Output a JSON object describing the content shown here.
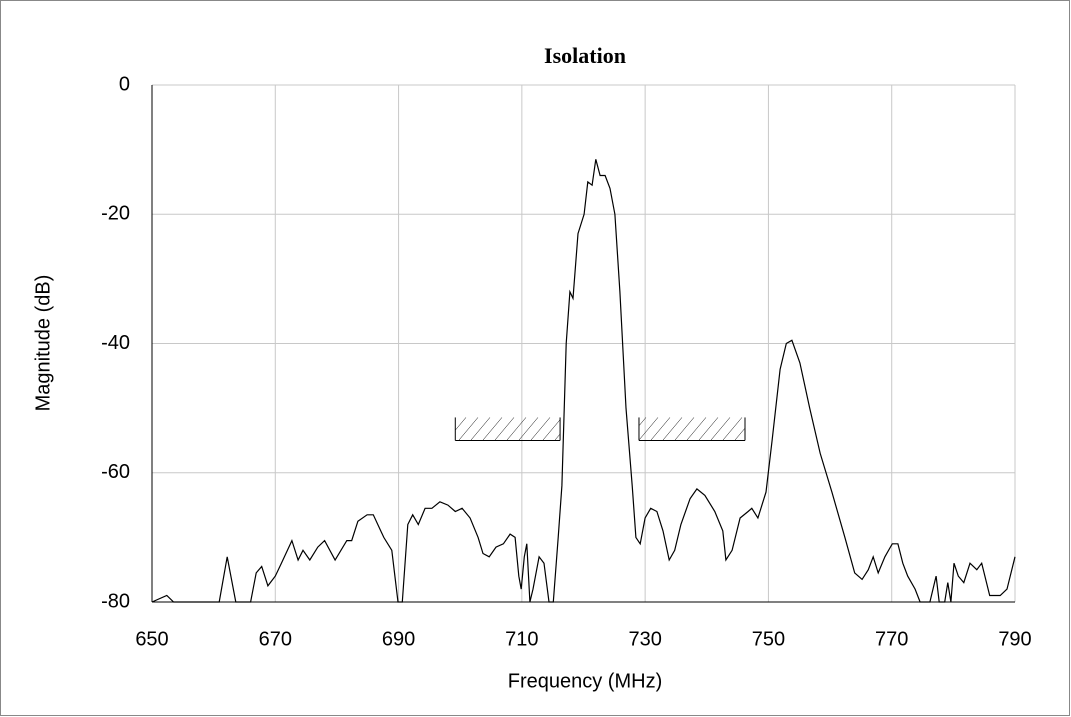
{
  "chart_data": {
    "type": "line",
    "title": "Isolation",
    "x_label": "Frequency (MHz)",
    "y_label": "Magnitude (dB)",
    "xlim": [
      650,
      790
    ],
    "ylim": [
      -80,
      0
    ],
    "xticks": [
      650,
      670,
      690,
      710,
      730,
      750,
      770,
      790
    ],
    "yticks": [
      -80,
      -60,
      -40,
      -20,
      0
    ],
    "grid": true,
    "series": [
      {
        "color": "#000000",
        "x": [
          650,
          652.4,
          653.5,
          660.9,
          662.2,
          663.6,
          666,
          666.9,
          667.8,
          668.8,
          670,
          671,
          672.7,
          673.7,
          674.5,
          675.6,
          676.9,
          678,
          679.7,
          681.6,
          682.4,
          683.4,
          684.9,
          685.9,
          687.6,
          688.9,
          689.9,
          690.6,
          691.5,
          692.3,
          693.2,
          694.3,
          695.4,
          696.7,
          698,
          699.2,
          700.3,
          701.6,
          702.9,
          703.7,
          704.7,
          705.8,
          707,
          708.1,
          708.9,
          709.5,
          709.9,
          710.4,
          710.8,
          711.3,
          711.8,
          712.8,
          713.6,
          714.4,
          715.1,
          715.9,
          716.5,
          717.2,
          717.8,
          718.3,
          719.1,
          720.1,
          720.7,
          721.4,
          722,
          722.7,
          723.5,
          724.3,
          725.1,
          725.9,
          726.9,
          727.9,
          728.5,
          729.2,
          730,
          730.9,
          731.9,
          732.9,
          733.9,
          734.8,
          735.8,
          737.3,
          738.4,
          739.7,
          741.3,
          742.6,
          743.1,
          744.1,
          745.4,
          746.7,
          747.3,
          748.3,
          749.6,
          750.6,
          751.9,
          752.9,
          753.8,
          755.1,
          756.7,
          758.4,
          760.3,
          762.4,
          764,
          765.2,
          766.2,
          767,
          767.8,
          768.9,
          770.1,
          771,
          771.8,
          772.6,
          773.8,
          774.6,
          776.2,
          777.2,
          777.7,
          778.6,
          779.1,
          779.6,
          780.1,
          780.8,
          781.7,
          782.7,
          783.8,
          784.6,
          785.9,
          787.6,
          788.7,
          790
        ],
        "values": [
          -80,
          -79,
          -80,
          -80,
          -73,
          -80,
          -80,
          -75.5,
          -74.5,
          -77.5,
          -76,
          -74,
          -70.5,
          -73.5,
          -72,
          -73.5,
          -71.5,
          -70.5,
          -73.5,
          -70.5,
          -70.5,
          -67.5,
          -66.5,
          -66.5,
          -70,
          -72,
          -80,
          -80,
          -68,
          -66.5,
          -68,
          -65.5,
          -65.5,
          -64.5,
          -65,
          -66,
          -65.5,
          -67,
          -70,
          -72.5,
          -73,
          -71.5,
          -71,
          -69.5,
          -70,
          -76,
          -78,
          -73,
          -71,
          -80,
          -78,
          -73,
          -74,
          -80,
          -80,
          -70,
          -62,
          -40,
          -32,
          -33,
          -23,
          -20,
          -15,
          -15.5,
          -11.5,
          -14,
          -14,
          -16,
          -20,
          -32,
          -50,
          -62,
          -70,
          -71,
          -67,
          -65.5,
          -66,
          -69,
          -73.5,
          -72,
          -68,
          -64,
          -62.5,
          -63.5,
          -66,
          -69,
          -73.5,
          -72,
          -67,
          -66,
          -65.5,
          -67,
          -63,
          -55,
          -44,
          -40,
          -39.5,
          -43,
          -50,
          -57,
          -63,
          -70,
          -75.5,
          -76.5,
          -75,
          -73,
          -75.5,
          -73,
          -71,
          -71,
          -74,
          -76,
          -78,
          -80,
          -80,
          -76,
          -80,
          -80,
          -77,
          -80,
          -74,
          -76,
          -77,
          -74,
          -75,
          -74,
          -79,
          -79,
          -78,
          -73
        ]
      }
    ],
    "limits": [
      {
        "x": [
          699.2,
          716.2
        ],
        "y": -55
      },
      {
        "x": [
          729,
          746.2
        ],
        "y": -55
      }
    ]
  }
}
